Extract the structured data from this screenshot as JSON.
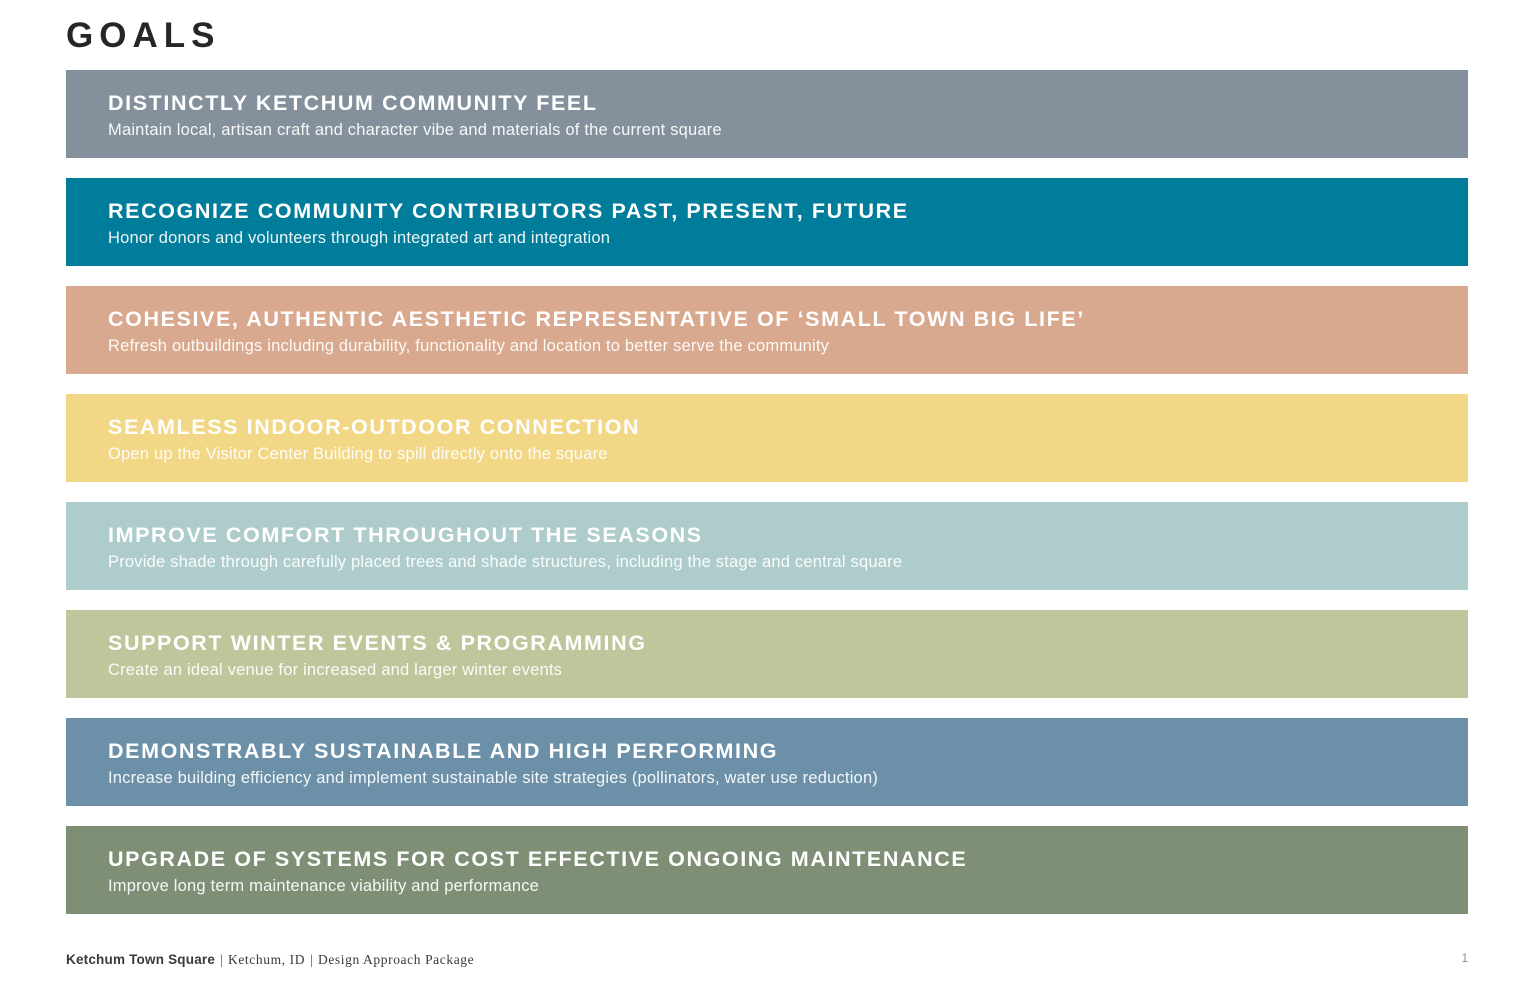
{
  "page": {
    "title": "GOALS",
    "page_number": "1"
  },
  "goals": [
    {
      "heading": "DISTINCTLY KETCHUM COMMUNITY FEEL",
      "description": "Maintain local, artisan craft and character vibe and materials of the current square",
      "color": "#84909c"
    },
    {
      "heading": "RECOGNIZE COMMUNITY CONTRIBUTORS PAST, PRESENT, FUTURE",
      "description": "Honor donors and volunteers through integrated art and integration",
      "color": "#007d9a"
    },
    {
      "heading": "COHESIVE, AUTHENTIC AESTHETIC REPRESENTATIVE OF ‘SMALL TOWN BIG LIFE’",
      "description": "Refresh outbuildings including durability, functionality and location to better serve the community",
      "color": "#d8a98e"
    },
    {
      "heading": "SEAMLESS INDOOR-OUTDOOR CONNECTION",
      "description": "Open up the Visitor Center Building to spill directly onto the square",
      "color": "#f2d787"
    },
    {
      "heading": "IMPROVE COMFORT THROUGHOUT THE SEASONS",
      "description": "Provide shade through carefully placed trees and shade structures, including the stage and central square",
      "color": "#aecccb"
    },
    {
      "heading": "SUPPORT WINTER EVENTS & PROGRAMMING",
      "description": "Create an ideal venue for increased and larger winter events",
      "color": "#bfc69b"
    },
    {
      "heading": "DEMONSTRABLY SUSTAINABLE AND HIGH PERFORMING",
      "description": "Increase building efficiency and implement sustainable site strategies (pollinators, water use reduction)",
      "color": "#6b90a8"
    },
    {
      "heading": "UPGRADE OF SYSTEMS FOR COST EFFECTIVE ONGOING MAINTENANCE",
      "description": "Improve long term maintenance viability and performance",
      "color": "#7f8f76"
    }
  ],
  "footer": {
    "project": "Ketchum Town Square",
    "separator": "|",
    "location": "Ketchum, ID",
    "package": "Design Approach Package"
  }
}
